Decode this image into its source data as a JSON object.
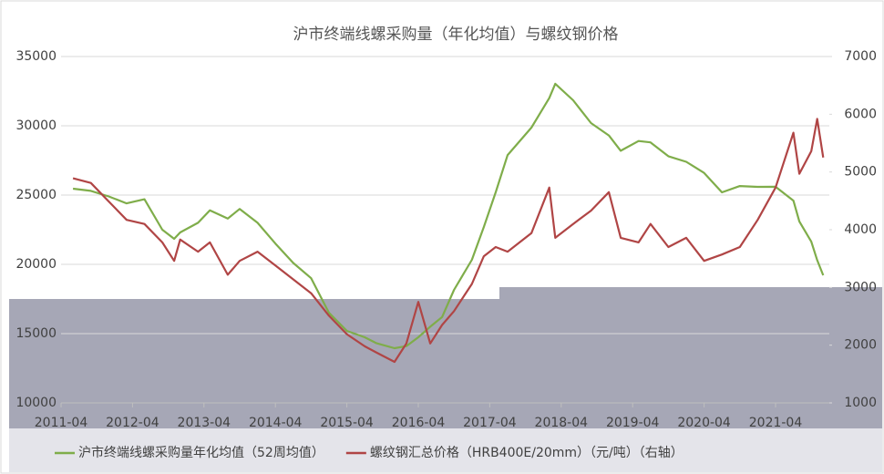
{
  "chart_data": {
    "type": "line",
    "title": "沪市终端线螺采购量（年化均值）与螺纹钢价格",
    "x": [
      "2011-06",
      "2011-09",
      "2011-12",
      "2012-03",
      "2012-06",
      "2012-09",
      "2012-11",
      "2012-12",
      "2013-03",
      "2013-05",
      "2013-08",
      "2013-10",
      "2014-01",
      "2014-04",
      "2014-07",
      "2014-10",
      "2015-01",
      "2015-04",
      "2015-07",
      "2015-09",
      "2015-12",
      "2016-02",
      "2016-04",
      "2016-06",
      "2016-08",
      "2016-10",
      "2017-01",
      "2017-03",
      "2017-05",
      "2017-07",
      "2017-11",
      "2018-02",
      "2018-03",
      "2018-06",
      "2018-09",
      "2018-12",
      "2019-02",
      "2019-05",
      "2019-07",
      "2019-10",
      "2020-01",
      "2020-04",
      "2020-07",
      "2020-10",
      "2021-01",
      "2021-04",
      "2021-07",
      "2021-08",
      "2021-10",
      "2021-11",
      "2021-12"
    ],
    "series": [
      {
        "name": "沪市终端线螺采购量年化均值（52周均值）",
        "color": "#7fad4a",
        "values": [
          25460,
          25300,
          24900,
          24400,
          24700,
          22500,
          21840,
          22300,
          23000,
          23900,
          23300,
          24000,
          23000,
          21500,
          20100,
          19000,
          16500,
          15200,
          14740,
          14300,
          13950,
          14100,
          14740,
          15500,
          16200,
          18160,
          20330,
          22700,
          25200,
          27890,
          29870,
          32000,
          33030,
          31840,
          30200,
          29300,
          28200,
          28900,
          28800,
          27800,
          27400,
          26600,
          25200,
          25650,
          25590,
          25600,
          24600,
          23100,
          21640,
          20300,
          19210
        ]
      },
      {
        "name": "螺纹钢汇总价格（HRB400E/20mm）（元/吨）（右轴）",
        "color": "#b04545",
        "axis": "y2",
        "values": [
          4890,
          4810,
          4490,
          4170,
          4100,
          3780,
          3460,
          3830,
          3620,
          3780,
          3220,
          3460,
          3620,
          3380,
          3140,
          2900,
          2510,
          2190,
          1980,
          1870,
          1710,
          2030,
          2750,
          2030,
          2350,
          2590,
          3060,
          3540,
          3700,
          3620,
          3940,
          4730,
          3860,
          4100,
          4330,
          4650,
          3860,
          3780,
          4100,
          3700,
          3860,
          3460,
          3570,
          3700,
          4170,
          4730,
          5680,
          4970,
          5360,
          5920,
          5250
        ]
      }
    ],
    "xticks": [
      "2011-04",
      "2012-04",
      "2013-04",
      "2014-04",
      "2015-04",
      "2016-04",
      "2017-04",
      "2018-04",
      "2019-04",
      "2020-04",
      "2021-04"
    ],
    "ylim": [
      10000,
      35000
    ],
    "yticks": [
      10000,
      15000,
      20000,
      25000,
      30000,
      35000
    ],
    "y2lim": [
      1000,
      7000
    ],
    "y2ticks": [
      1000,
      2000,
      3000,
      4000,
      5000,
      6000,
      7000
    ],
    "grid": true
  }
}
